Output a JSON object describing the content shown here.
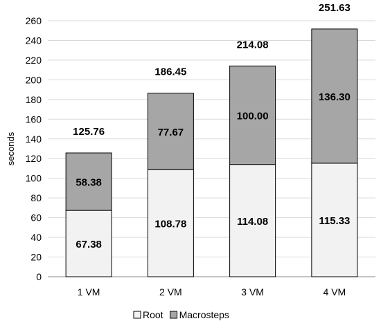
{
  "chart_data": {
    "type": "bar",
    "stacked": true,
    "categories": [
      "1 VM",
      "2 VM",
      "3 VM",
      "4 VM"
    ],
    "series": [
      {
        "name": "Root",
        "values": [
          67.38,
          108.78,
          114.08,
          115.33
        ],
        "color": "#f2f2f2"
      },
      {
        "name": "Macrosteps",
        "values": [
          58.38,
          77.67,
          100.0,
          136.3
        ],
        "color": "#a6a6a6"
      }
    ],
    "totals": [
      125.76,
      186.45,
      214.08,
      251.63
    ],
    "value_labels": [
      [
        "67.38",
        "108.78",
        "114.08",
        "115.33"
      ],
      [
        "58.38",
        "77.67",
        "100.00",
        "136.30"
      ]
    ],
    "total_labels": [
      "125.76",
      "186.45",
      "214.08",
      "251.63"
    ],
    "ylabel": "seconds",
    "xlabel": "",
    "title": "",
    "ylim": [
      0,
      260
    ],
    "ytick_step": 20,
    "grid": true,
    "legend_position": "bottom"
  }
}
